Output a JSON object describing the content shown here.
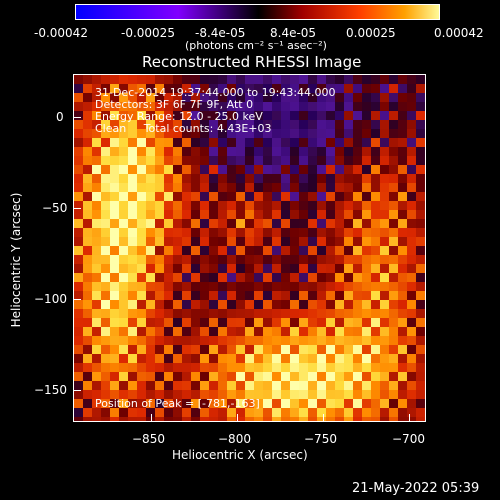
{
  "colorbar": {
    "tick_labels": [
      "-0.00042",
      "-0.00025",
      "-8.4e-05",
      "8.4e-05",
      "0.00025",
      "0.00042"
    ],
    "unit_label": "(photons cm⁻² s⁻¹ asec⁻²)",
    "range": [
      -0.00042,
      0.00042
    ],
    "colors": [
      "#0000ff",
      "#8000ff",
      "#000000",
      "#800000",
      "#ff4000",
      "#ff9000",
      "#ffff80"
    ]
  },
  "plot": {
    "title": "Reconstructed RHESSI Image",
    "xlabel": "Heliocentric X (arcsec)",
    "ylabel": "Heliocentric Y (arcsec)",
    "xticks": [
      "−850",
      "−800",
      "−750",
      "−700"
    ],
    "yticks": [
      "0",
      "−50",
      "−100",
      "−150"
    ],
    "xlim": [
      -887,
      -693
    ],
    "ylim": [
      -168,
      24
    ],
    "annotations": {
      "line1": "31-Dec-2014 19:37:44.000 to 19:43:44.000",
      "line2": "Detectors: 3F 6F 7F 9F, Att 0",
      "line3": "Energy Range: 12.0 - 25.0 keV",
      "line4": "Clean     Total counts: 4.43E+03",
      "peak": "Position of Peak = [-781,-163]"
    }
  },
  "timestamp": "21-May-2022 05:39"
}
